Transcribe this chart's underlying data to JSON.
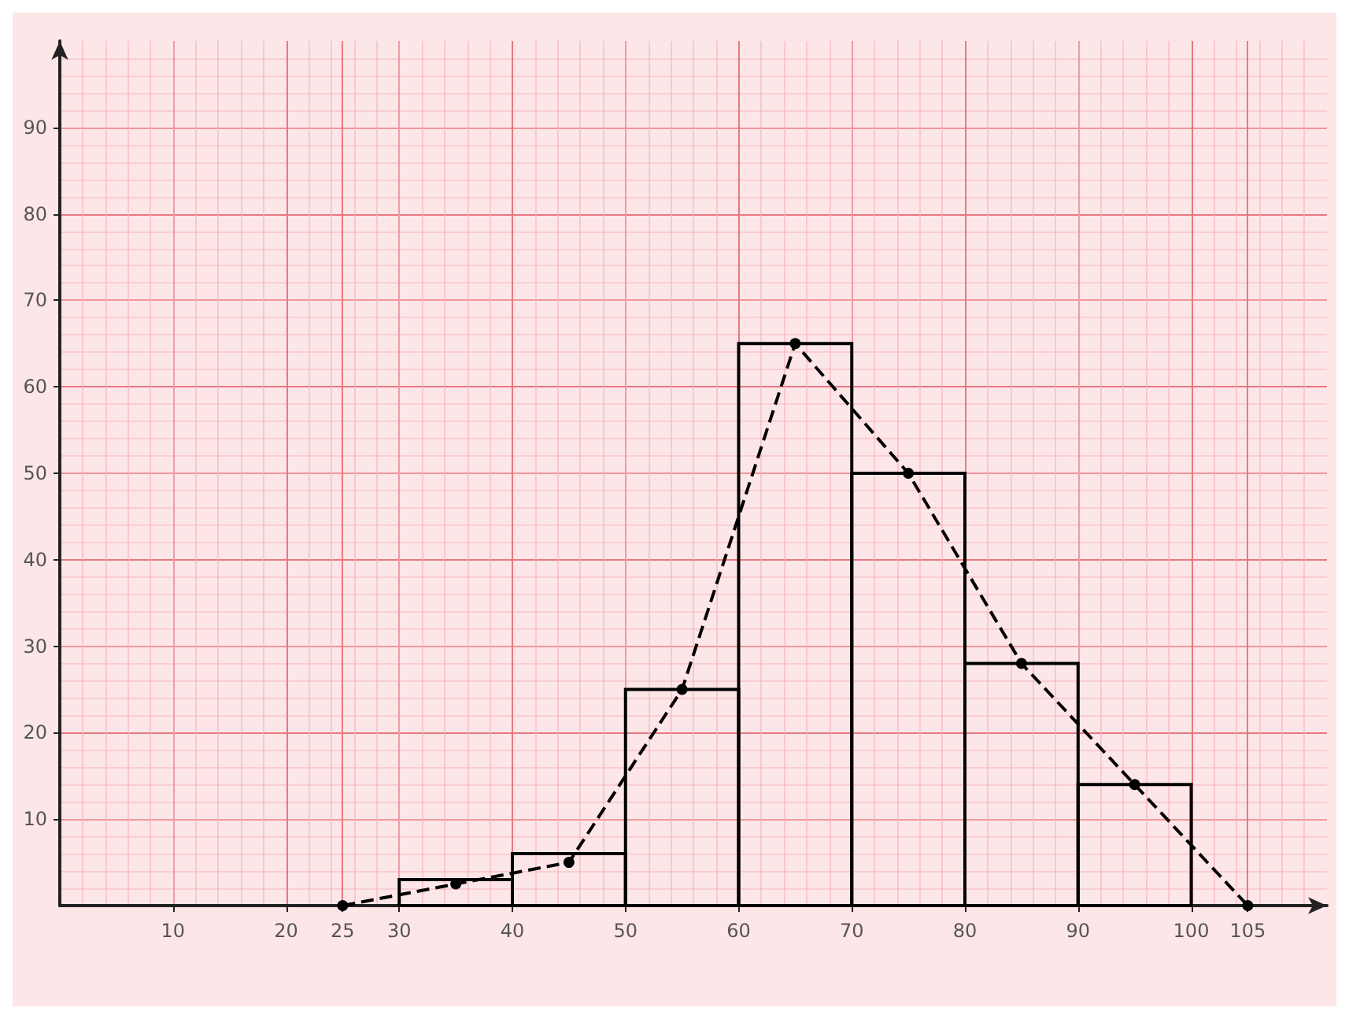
{
  "chart_data": {
    "type": "histogram",
    "bins": [
      30,
      40,
      50,
      60,
      70,
      80,
      90,
      100
    ],
    "values": [
      3,
      6,
      25,
      65,
      50,
      28,
      14
    ],
    "color": "#000000",
    "series": [
      {
        "type": "line",
        "x": [
          25,
          35,
          45,
          55,
          65,
          75,
          85,
          95,
          105
        ],
        "values": [
          0,
          2.5,
          5,
          25,
          65,
          50,
          28,
          14,
          0
        ],
        "color": "#000000",
        "line_style": "dashed",
        "marker": "circle"
      }
    ],
    "xlim": [
      0,
      112
    ],
    "ylim": [
      0,
      100
    ],
    "xticks": [
      10,
      20,
      25,
      30,
      40,
      50,
      60,
      70,
      80,
      90,
      100,
      105
    ],
    "yticks": [
      10,
      20,
      30,
      40,
      50,
      60,
      70,
      80,
      90
    ],
    "grid": true
  }
}
